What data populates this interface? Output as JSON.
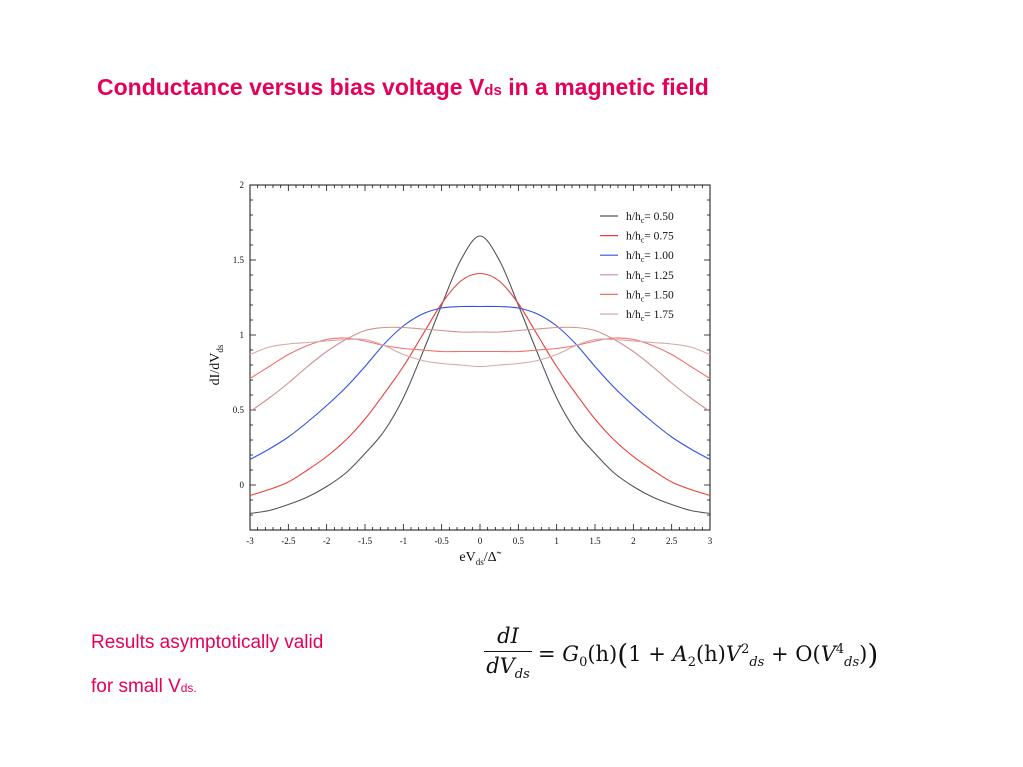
{
  "title": {
    "main": "Conductance versus bias voltage V",
    "sub": "ds",
    "rest": " in a magnetic field"
  },
  "note": {
    "line1": "Results asymptotically valid",
    "line2_main": "for small V",
    "line2_sub": "ds."
  },
  "formula": {
    "numerator": "dI",
    "denominator_main": "dV",
    "denominator_sub": "ds",
    "rhs_eq": "= ",
    "g0": "G",
    "g0_sub": "0",
    "g0_arg": "(h)",
    "one_plus": "1 + ",
    "a2": "A",
    "a2_sub": "2",
    "a2_arg": "(h)",
    "v1": "V",
    "v1_sup": "2",
    "v1_sub": "ds",
    "plus_o": " + O(",
    "v2": "V",
    "v2_sup": "4",
    "v2_sub": "ds",
    "close": ")"
  },
  "colors": {
    "accent": "#e5005a"
  },
  "chart_data": {
    "type": "line",
    "xlabel_main": "eV",
    "xlabel_sub": "ds",
    "xlabel_rest": "/Δ̃",
    "ylabel_main": "dI/dV",
    "ylabel_sub": "ds",
    "xlim": [
      -3,
      3
    ],
    "ylim": [
      -0.3,
      2
    ],
    "xticks": [
      -3,
      -2.5,
      -2,
      -1.5,
      -1,
      -0.5,
      0,
      0.5,
      1,
      1.5,
      2,
      2.5,
      3
    ],
    "xtick_labels": [
      "-3",
      "-2.5",
      "-2",
      "-1.5",
      "-1",
      "-0.5",
      "0",
      "0.5",
      "1",
      "1.5",
      "2",
      "2.5",
      "3"
    ],
    "yticks": [
      0,
      0.5,
      1,
      1.5,
      2
    ],
    "ytick_labels": [
      "0",
      "0.5",
      "1",
      "1.5",
      "2"
    ],
    "legend_position": "top-right",
    "x": [
      -3,
      -2.75,
      -2.5,
      -2.25,
      -2,
      -1.75,
      -1.5,
      -1.25,
      -1,
      -0.75,
      -0.5,
      -0.25,
      0,
      0.25,
      0.5,
      0.75,
      1,
      1.25,
      1.5,
      1.75,
      2,
      2.25,
      2.5,
      2.75,
      3
    ],
    "series": [
      {
        "name": "h/hc= 0.50",
        "label_main": "h/h",
        "label_sub": "c",
        "label_rest": "= 0.50",
        "color": "#555555",
        "values": [
          -0.19,
          -0.17,
          -0.13,
          -0.08,
          -0.01,
          0.08,
          0.21,
          0.36,
          0.58,
          0.88,
          1.2,
          1.5,
          1.66,
          1.5,
          1.2,
          0.88,
          0.58,
          0.36,
          0.21,
          0.08,
          -0.01,
          -0.08,
          -0.13,
          -0.17,
          -0.19
        ]
      },
      {
        "name": "h/hc= 0.75",
        "label_main": "h/h",
        "label_sub": "c",
        "label_rest": "= 0.75",
        "color": "#e8403c",
        "values": [
          -0.07,
          -0.03,
          0.02,
          0.1,
          0.19,
          0.3,
          0.44,
          0.61,
          0.79,
          1.0,
          1.21,
          1.36,
          1.41,
          1.36,
          1.21,
          1.0,
          0.79,
          0.61,
          0.44,
          0.3,
          0.19,
          0.1,
          0.02,
          -0.03,
          -0.07
        ]
      },
      {
        "name": "h/hc= 1.00",
        "label_main": "h/h",
        "label_sub": "c",
        "label_rest": "= 1.00",
        "color": "#3050e8",
        "values": [
          0.17,
          0.24,
          0.32,
          0.42,
          0.53,
          0.65,
          0.79,
          0.94,
          1.06,
          1.14,
          1.18,
          1.19,
          1.19,
          1.19,
          1.18,
          1.14,
          1.06,
          0.94,
          0.79,
          0.65,
          0.53,
          0.42,
          0.32,
          0.24,
          0.17
        ]
      },
      {
        "name": "h/hc= 1.25",
        "label_main": "h/h",
        "label_sub": "c",
        "label_rest": "= 1.25",
        "color": "#d09090",
        "values": [
          0.49,
          0.58,
          0.68,
          0.79,
          0.89,
          0.97,
          1.03,
          1.05,
          1.05,
          1.04,
          1.03,
          1.02,
          1.02,
          1.02,
          1.03,
          1.04,
          1.05,
          1.05,
          1.03,
          0.97,
          0.89,
          0.79,
          0.68,
          0.58,
          0.49
        ]
      },
      {
        "name": "h/hc= 1.50",
        "label_main": "h/h",
        "label_sub": "c",
        "label_rest": "= 1.50",
        "color": "#f07070",
        "values": [
          0.71,
          0.79,
          0.87,
          0.93,
          0.97,
          0.98,
          0.96,
          0.93,
          0.91,
          0.9,
          0.89,
          0.89,
          0.89,
          0.89,
          0.89,
          0.9,
          0.91,
          0.93,
          0.96,
          0.98,
          0.97,
          0.93,
          0.87,
          0.79,
          0.71
        ]
      },
      {
        "name": "h/hc= 1.75",
        "label_main": "h/h",
        "label_sub": "c",
        "label_rest": "= 1.75",
        "color": "#d8a8a8",
        "values": [
          0.87,
          0.92,
          0.94,
          0.95,
          0.96,
          0.97,
          0.97,
          0.93,
          0.87,
          0.83,
          0.81,
          0.8,
          0.79,
          0.8,
          0.81,
          0.83,
          0.87,
          0.93,
          0.97,
          0.97,
          0.96,
          0.95,
          0.94,
          0.92,
          0.87
        ]
      }
    ]
  }
}
